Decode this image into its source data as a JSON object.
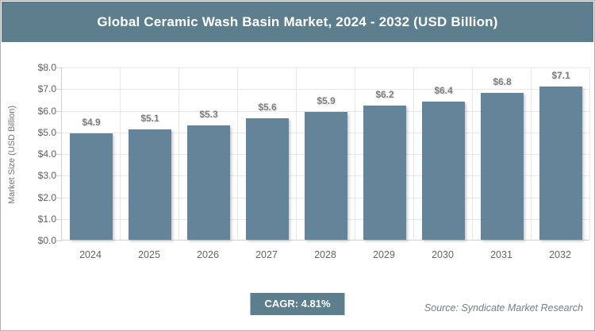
{
  "header": {
    "title": "Global Ceramic Wash Basin Market, 2024 - 2032 (USD Billion)"
  },
  "chart_data": {
    "type": "bar",
    "title": "Global Ceramic Wash Basin Market, 2024 - 2032 (USD Billion)",
    "categories": [
      "2024",
      "2025",
      "2026",
      "2027",
      "2028",
      "2029",
      "2030",
      "2031",
      "2032"
    ],
    "values": [
      4.9,
      5.1,
      5.3,
      5.6,
      5.9,
      6.2,
      6.4,
      6.8,
      7.1
    ],
    "value_labels": [
      "$4.9",
      "$5.1",
      "$5.3",
      "$5.6",
      "$5.9",
      "$6.2",
      "$6.4",
      "$6.8",
      "$7.1"
    ],
    "xlabel": "",
    "ylabel": "Market Size (USD Billion)",
    "ylim": [
      0,
      8
    ],
    "ytick_labels": [
      "$0.0",
      "$1.0",
      "$2.0",
      "$3.0",
      "$4.0",
      "$5.0",
      "$6.0",
      "$7.0",
      "$8.0"
    ],
    "grid": "horizontal-and-vertical",
    "legend": "none"
  },
  "footer": {
    "cagr_label": "CAGR: 4.81%",
    "source": "Source: Syndicate Market Research"
  },
  "colors": {
    "accent_teal": "#5d7f8d",
    "bar_fill": "#648499",
    "grid_line": "#e7e7e7",
    "axis_line": "#d2d2d2",
    "label_gray": "#7f7f7f",
    "tick_gray": "#5f5f5f",
    "source_text": "#6d828c"
  }
}
